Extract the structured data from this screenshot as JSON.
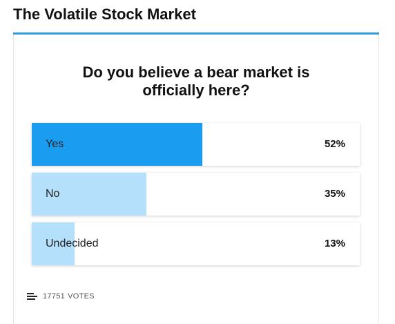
{
  "header": {
    "title": "The Volatile Stock Market",
    "accent_color": "#2f9be0"
  },
  "poll": {
    "question": "Do you believe a bear market is officially here?",
    "options": [
      {
        "label": "Yes",
        "percent_label": "52%",
        "percent": 52,
        "color": "#1a9cf0"
      },
      {
        "label": "No",
        "percent_label": "35%",
        "percent": 35,
        "color": "#b5e0fc"
      },
      {
        "label": "Undecided",
        "percent_label": "13%",
        "percent": 13,
        "color": "#b5e0fc"
      }
    ],
    "votes_count": "17751",
    "votes_label": "VOTES",
    "votes_icon": "bar-list-icon"
  }
}
